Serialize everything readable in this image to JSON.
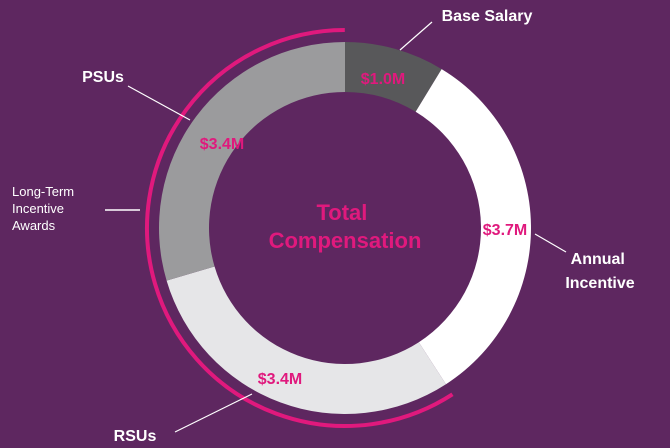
{
  "chart_data": {
    "type": "donut",
    "title": "Total Compensation",
    "categories": [
      "Base Salary",
      "Annual Incentive",
      "RSUs",
      "PSUs"
    ],
    "values": [
      1.0,
      3.7,
      3.4,
      3.4
    ],
    "value_labels": [
      "$1.0M",
      "$3.7M",
      "$3.4M",
      "$3.4M"
    ],
    "colors": [
      "#58585a",
      "#ffffff",
      "#e6e6e8",
      "#9b9b9d"
    ],
    "annotation": "Long-Term Incentive Awards"
  }
}
